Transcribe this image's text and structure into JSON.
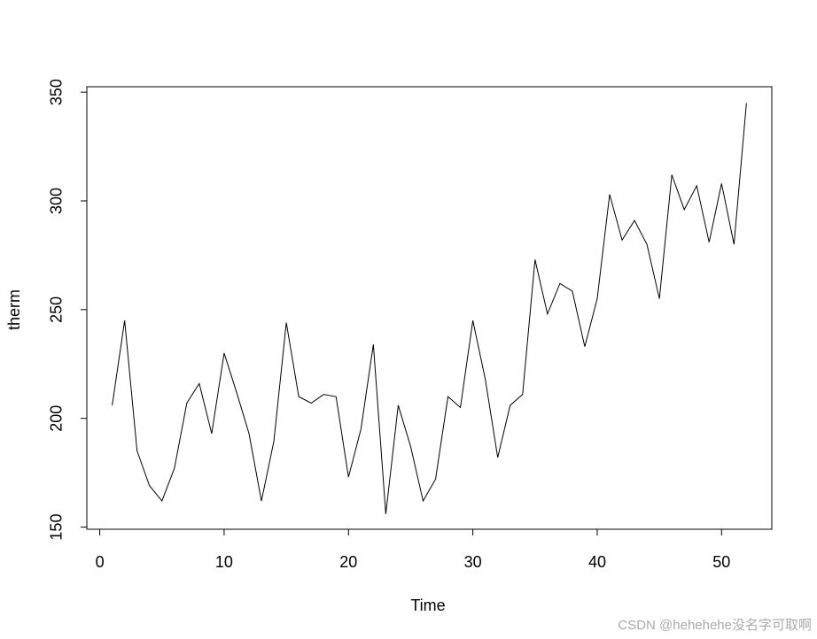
{
  "chart_data": {
    "type": "line",
    "xlabel": "Time",
    "ylabel": "therm",
    "x": [
      1,
      2,
      3,
      4,
      5,
      6,
      7,
      8,
      9,
      10,
      11,
      12,
      13,
      14,
      15,
      16,
      17,
      18,
      19,
      20,
      21,
      22,
      23,
      24,
      25,
      26,
      27,
      28,
      29,
      30,
      31,
      32,
      33,
      34,
      35,
      36,
      37,
      38,
      39,
      40,
      41,
      42,
      43,
      44,
      45,
      46,
      47,
      48,
      49,
      50,
      51,
      52
    ],
    "series": [
      {
        "color": "#000000",
        "values": [
          206,
          245,
          185,
          169,
          162,
          177,
          207,
          216,
          193,
          230,
          212,
          193,
          162,
          189.5,
          244,
          210,
          207,
          211,
          210,
          173,
          195,
          234,
          156,
          206,
          187,
          162,
          172,
          210,
          205,
          245,
          218,
          182,
          206,
          211,
          273,
          248,
          262,
          258.5,
          233,
          255,
          303,
          282,
          291,
          280,
          255,
          312,
          296,
          307,
          281,
          308,
          280,
          345
        ]
      }
    ],
    "xlim": [
      -1.04,
      54.04
    ],
    "xticks": [
      0,
      10,
      20,
      30,
      40,
      50
    ],
    "ylim": [
      149,
      352.5
    ],
    "yticks": [
      150,
      200,
      250,
      300,
      350
    ],
    "watermark": "CSDN @hehehehe没名字可取啊"
  }
}
